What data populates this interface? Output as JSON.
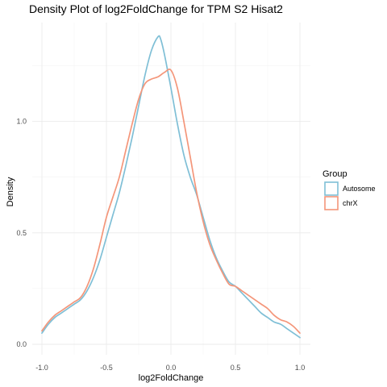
{
  "chart_data": {
    "type": "line",
    "title": "Density Plot of log2FoldChange for TPM S2 Hisat2",
    "xlabel": "log2FoldChange",
    "ylabel": "Density",
    "xlim": [
      -1.0,
      1.0
    ],
    "ylim": [
      0.0,
      1.4
    ],
    "x_ticks": [
      -1.0,
      -0.5,
      0.0,
      0.5,
      1.0
    ],
    "x_tick_labels": [
      "-1.0",
      "-0.5",
      "0.0",
      "0.5",
      "1.0"
    ],
    "y_ticks": [
      0.0,
      0.5,
      1.0
    ],
    "y_tick_labels": [
      "0.0",
      "0.5",
      "1.0"
    ],
    "grid": true,
    "legend": {
      "title": "Group",
      "position": "right"
    },
    "series": [
      {
        "name": "Autosome",
        "color": "#7fbfd6",
        "x": [
          -1.0,
          -0.95,
          -0.9,
          -0.85,
          -0.8,
          -0.75,
          -0.7,
          -0.65,
          -0.6,
          -0.55,
          -0.5,
          -0.45,
          -0.4,
          -0.35,
          -0.3,
          -0.25,
          -0.2,
          -0.15,
          -0.1,
          -0.08,
          -0.05,
          0.0,
          0.05,
          0.1,
          0.15,
          0.2,
          0.25,
          0.3,
          0.35,
          0.4,
          0.45,
          0.5,
          0.55,
          0.6,
          0.65,
          0.7,
          0.75,
          0.8,
          0.85,
          0.9,
          0.95,
          1.0
        ],
        "y": [
          0.05,
          0.09,
          0.12,
          0.14,
          0.16,
          0.18,
          0.2,
          0.24,
          0.3,
          0.38,
          0.48,
          0.58,
          0.68,
          0.8,
          0.93,
          1.07,
          1.21,
          1.32,
          1.38,
          1.37,
          1.3,
          1.15,
          0.99,
          0.85,
          0.75,
          0.67,
          0.57,
          0.47,
          0.39,
          0.33,
          0.28,
          0.26,
          0.23,
          0.2,
          0.17,
          0.14,
          0.12,
          0.1,
          0.09,
          0.07,
          0.05,
          0.03
        ]
      },
      {
        "name": "chrX",
        "color": "#f4967a",
        "x": [
          -1.0,
          -0.95,
          -0.9,
          -0.85,
          -0.8,
          -0.75,
          -0.7,
          -0.65,
          -0.6,
          -0.55,
          -0.5,
          -0.45,
          -0.4,
          -0.35,
          -0.3,
          -0.25,
          -0.2,
          -0.15,
          -0.1,
          -0.05,
          0.0,
          0.05,
          0.1,
          0.15,
          0.2,
          0.25,
          0.3,
          0.35,
          0.4,
          0.45,
          0.5,
          0.55,
          0.6,
          0.65,
          0.7,
          0.75,
          0.8,
          0.85,
          0.9,
          0.95,
          1.0
        ],
        "y": [
          0.06,
          0.1,
          0.13,
          0.15,
          0.17,
          0.19,
          0.21,
          0.26,
          0.34,
          0.45,
          0.57,
          0.66,
          0.75,
          0.87,
          0.99,
          1.1,
          1.17,
          1.19,
          1.2,
          1.22,
          1.23,
          1.15,
          1.0,
          0.84,
          0.68,
          0.55,
          0.45,
          0.38,
          0.32,
          0.27,
          0.26,
          0.24,
          0.22,
          0.2,
          0.18,
          0.16,
          0.13,
          0.11,
          0.1,
          0.08,
          0.05
        ]
      }
    ]
  }
}
